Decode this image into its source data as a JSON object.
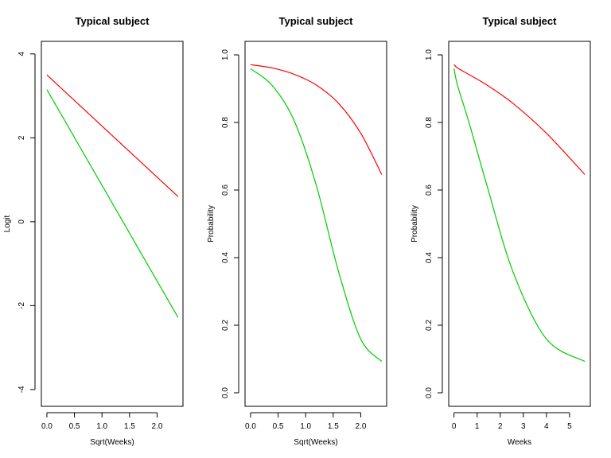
{
  "chart_data": [
    {
      "type": "line",
      "title": "Typical subject",
      "xlabel": "Sqrt(Weeks)",
      "ylabel": "Logit",
      "xlim": [
        -0.1,
        2.47
      ],
      "ylim": [
        -4.4,
        4.3
      ],
      "xticks": [
        0.0,
        0.5,
        1.0,
        1.5,
        2.0
      ],
      "xtick_labels": [
        "0.0",
        "0.5",
        "1.0",
        "1.5",
        "2.0"
      ],
      "yticks": [
        -4,
        -2,
        0,
        2,
        4
      ],
      "ytick_labels": [
        "-4",
        "-2",
        "0",
        "2",
        "4"
      ],
      "ytick_rotated": true,
      "grid": false,
      "series": [
        {
          "color": "#ff0000",
          "x": [
            0.0,
            2.38
          ],
          "y": [
            3.5,
            0.6
          ]
        },
        {
          "color": "#00cc00",
          "x": [
            0.0,
            2.38
          ],
          "y": [
            3.15,
            -2.28
          ]
        }
      ]
    },
    {
      "type": "line",
      "title": "Typical subject",
      "xlabel": "Sqrt(Weeks)",
      "ylabel": "Probability",
      "xlim": [
        -0.1,
        2.47
      ],
      "ylim": [
        -0.04,
        1.04
      ],
      "xticks": [
        0.0,
        0.5,
        1.0,
        1.5,
        2.0
      ],
      "xtick_labels": [
        "0.0",
        "0.5",
        "1.0",
        "1.5",
        "2.0"
      ],
      "yticks": [
        0.0,
        0.2,
        0.4,
        0.6,
        0.8,
        1.0
      ],
      "ytick_labels": [
        "0.0",
        "0.2",
        "0.4",
        "0.6",
        "0.8",
        "1.0"
      ],
      "ytick_rotated": true,
      "grid": false,
      "series": [
        {
          "color": "#ff0000",
          "x": [
            0.0,
            0.4,
            0.8,
            1.2,
            1.6,
            2.0,
            2.38
          ],
          "y": [
            0.971,
            0.961,
            0.942,
            0.91,
            0.856,
            0.768,
            0.646
          ]
        },
        {
          "color": "#00cc00",
          "x": [
            0.0,
            0.4,
            0.8,
            1.2,
            1.6,
            2.0,
            2.38
          ],
          "y": [
            0.959,
            0.908,
            0.802,
            0.61,
            0.357,
            0.159,
            0.093
          ]
        }
      ]
    },
    {
      "type": "line",
      "title": "Typical subject",
      "xlabel": "Weeks",
      "ylabel": "Probability",
      "xlim": [
        -0.23,
        5.9
      ],
      "ylim": [
        -0.04,
        1.04
      ],
      "xticks": [
        0,
        1,
        2,
        3,
        4,
        5
      ],
      "xtick_labels": [
        "0",
        "1",
        "2",
        "3",
        "4",
        "5"
      ],
      "yticks": [
        0.0,
        0.2,
        0.4,
        0.6,
        0.8,
        1.0
      ],
      "ytick_labels": [
        "0.0",
        "0.2",
        "0.4",
        "0.6",
        "0.8",
        "1.0"
      ],
      "ytick_rotated": true,
      "grid": false,
      "series": [
        {
          "color": "#ff0000",
          "x": [
            0.0,
            0.16,
            0.64,
            1.44,
            2.56,
            4.0,
            5.66
          ],
          "y": [
            0.971,
            0.961,
            0.942,
            0.91,
            0.856,
            0.768,
            0.646
          ]
        },
        {
          "color": "#00cc00",
          "x": [
            0.0,
            0.16,
            0.64,
            1.44,
            2.56,
            4.0,
            5.66
          ],
          "y": [
            0.959,
            0.908,
            0.802,
            0.61,
            0.357,
            0.159,
            0.093
          ]
        }
      ]
    }
  ]
}
